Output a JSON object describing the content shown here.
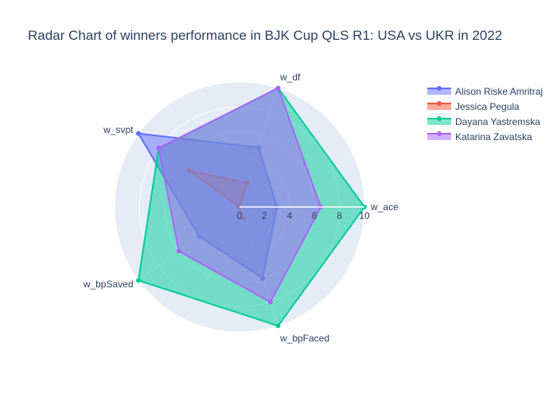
{
  "chart_data": {
    "type": "radar",
    "title": "Radar Chart of winners performance in BJK Cup QLS R1: USA vs UKR in 2022",
    "axes": [
      "w_ace",
      "w_df",
      "w_svpt",
      "w_bpSaved",
      "w_bpFaced"
    ],
    "radial_range": [
      0,
      10
    ],
    "radial_ticks": [
      0,
      2,
      4,
      6,
      8,
      10
    ],
    "grid": true,
    "legend_position": "top-right",
    "series": [
      {
        "name": "Alison Riske Amritraj",
        "color": "#636efa",
        "values": [
          3,
          5,
          10,
          4,
          6
        ]
      },
      {
        "name": "Jessica Pegula",
        "color": "#ef553b",
        "values": [
          0,
          2,
          5,
          0,
          1
        ]
      },
      {
        "name": "Dayana Yastremska",
        "color": "#00cc96",
        "values": [
          10,
          10,
          8,
          10,
          10
        ]
      },
      {
        "name": "Katarina Zavatska",
        "color": "#ab63fa",
        "values": [
          6.5,
          10,
          8,
          6,
          8
        ]
      }
    ]
  }
}
